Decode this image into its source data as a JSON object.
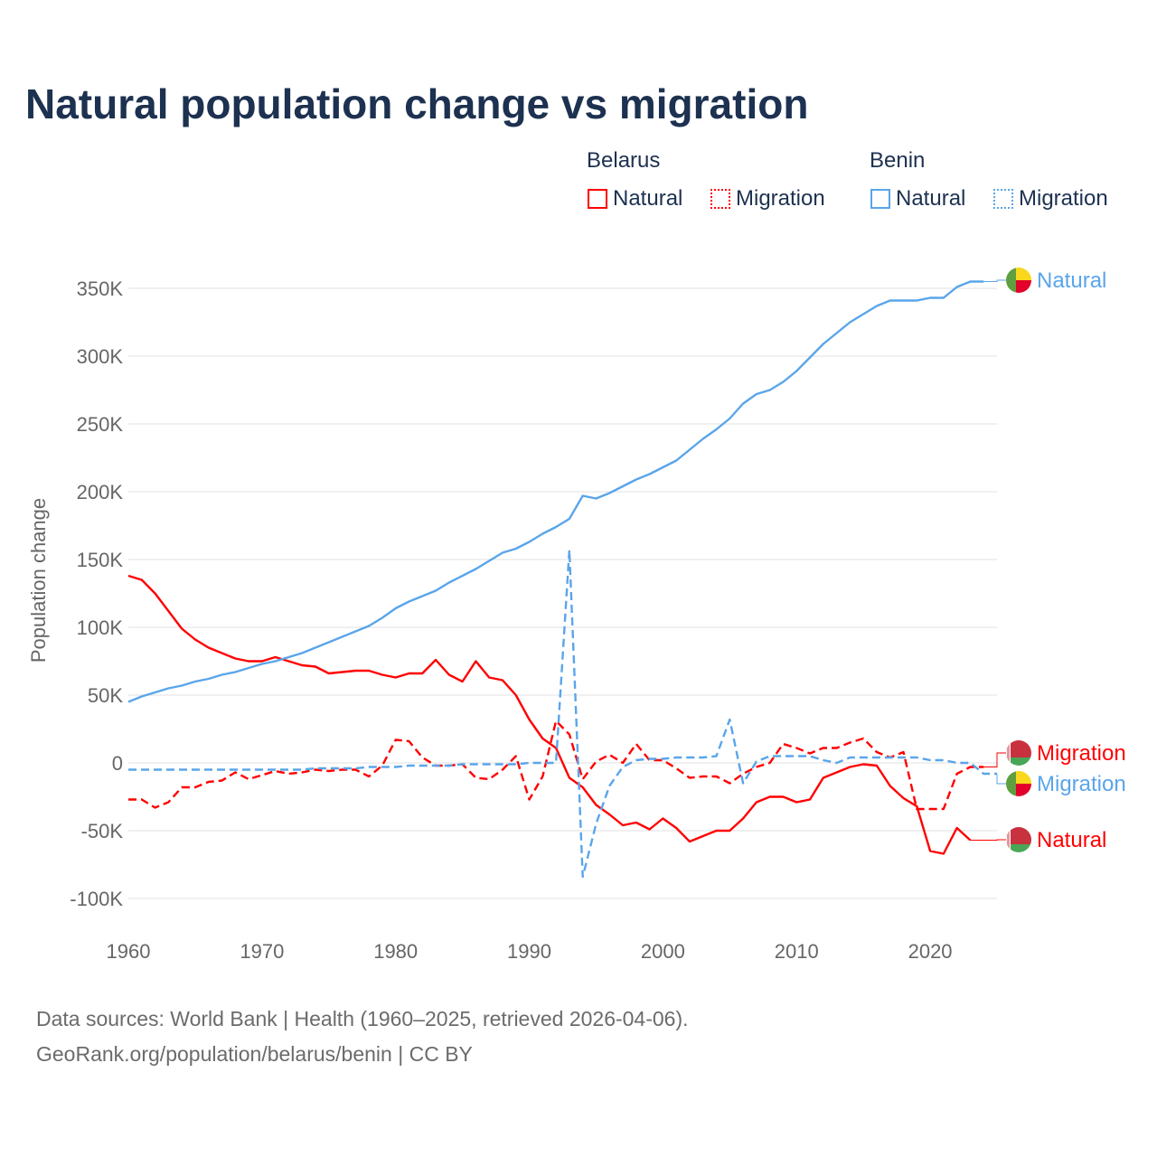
{
  "title": "Natural population change vs migration",
  "legend": {
    "groups": [
      {
        "name": "Belarus",
        "items": [
          {
            "label": "Natural",
            "style": "solid"
          },
          {
            "label": "Migration",
            "style": "dotted"
          }
        ],
        "color": "#ff0000"
      },
      {
        "name": "Benin",
        "items": [
          {
            "label": "Natural",
            "style": "solid"
          },
          {
            "label": "Migration",
            "style": "dotted"
          }
        ],
        "color": "#5aa5ea"
      }
    ]
  },
  "footer": {
    "line1": "Data sources: World Bank | Health (1960–2025, retrieved 2026-04-06).",
    "line2": "GeoRank.org/population/belarus/benin | CC BY"
  },
  "chart_data": {
    "type": "line",
    "title": "Natural population change vs migration",
    "xlabel": "",
    "ylabel": "Population change",
    "xlim": [
      1960,
      2025
    ],
    "ylim": [
      -100000,
      350000
    ],
    "x_ticks": [
      1960,
      1970,
      1980,
      1990,
      2000,
      2010,
      2020
    ],
    "y_ticks": [
      {
        "v": -100000,
        "label": "-100K"
      },
      {
        "v": -50000,
        "label": "-50K"
      },
      {
        "v": 0,
        "label": "0"
      },
      {
        "v": 50000,
        "label": "50K"
      },
      {
        "v": 100000,
        "label": "100K"
      },
      {
        "v": 150000,
        "label": "150K"
      },
      {
        "v": 200000,
        "label": "200K"
      },
      {
        "v": 250000,
        "label": "250K"
      },
      {
        "v": 300000,
        "label": "300K"
      },
      {
        "v": 350000,
        "label": "350K"
      }
    ],
    "grid": true,
    "start_year": 1960,
    "series": [
      {
        "name": "Belarus Natural",
        "country": "Belarus",
        "kind": "Natural",
        "color": "#ff0000",
        "dash": false,
        "end_label": "Natural",
        "unit": "K",
        "values": [
          138,
          135,
          125,
          112,
          99,
          91,
          85,
          81,
          77,
          75,
          75,
          78,
          75,
          72,
          71,
          66,
          67,
          68,
          68,
          65,
          63,
          66,
          66,
          76,
          65,
          60,
          75,
          63,
          61,
          50,
          32,
          18,
          11,
          -11,
          -18,
          -31,
          -38,
          -46,
          -44,
          -49,
          -41,
          -48,
          -58,
          -54,
          -50,
          -50,
          -41,
          -29,
          -25,
          -25,
          -29,
          -27,
          -11,
          -7,
          -3,
          -1,
          -2,
          -17,
          -26,
          -32,
          -65,
          -67,
          -48,
          -57
        ]
      },
      {
        "name": "Belarus Migration",
        "country": "Belarus",
        "kind": "Migration",
        "color": "#ff0000",
        "dash": true,
        "end_label": "Migration",
        "unit": "K",
        "values": [
          -27,
          -27,
          -33,
          -29,
          -18,
          -18,
          -14,
          -13,
          -7,
          -12,
          -9,
          -6,
          -8,
          -7,
          -5,
          -6,
          -5,
          -5,
          -10,
          -2,
          17,
          16,
          4,
          -2,
          -2,
          -1,
          -11,
          -12,
          -5,
          5,
          -27,
          -10,
          31,
          21,
          -12,
          1,
          6,
          0,
          14,
          2,
          2,
          -4,
          -11,
          -10,
          -10,
          -15,
          -8,
          -3,
          0,
          14,
          11,
          7,
          11,
          11,
          15,
          18,
          8,
          4,
          8,
          -34,
          -34,
          -34,
          -8,
          -3,
          -3
        ]
      },
      {
        "name": "Benin Natural",
        "country": "Benin",
        "kind": "Natural",
        "color": "#5aa5ea",
        "dash": false,
        "end_label": "Natural",
        "unit": "K",
        "values": [
          45,
          49,
          52,
          55,
          57,
          60,
          62,
          65,
          67,
          70,
          73,
          75,
          78,
          81,
          85,
          89,
          93,
          97,
          101,
          107,
          114,
          119,
          123,
          127,
          133,
          138,
          143,
          149,
          155,
          158,
          163,
          169,
          174,
          180,
          197,
          195,
          199,
          204,
          209,
          213,
          218,
          223,
          231,
          239,
          246,
          254,
          265,
          272,
          275,
          281,
          289,
          299,
          309,
          317,
          325,
          331,
          337,
          341,
          341,
          341,
          343,
          343,
          351,
          355,
          355
        ]
      },
      {
        "name": "Benin Migration",
        "country": "Benin",
        "kind": "Migration",
        "color": "#5aa5ea",
        "dash": true,
        "end_label": "Migration",
        "unit": "K",
        "values": [
          -5,
          -5,
          -5,
          -5,
          -5,
          -5,
          -5,
          -5,
          -5,
          -5,
          -5,
          -5,
          -5,
          -5,
          -4,
          -4,
          -4,
          -4,
          -3,
          -3,
          -3,
          -2,
          -2,
          -2,
          -2,
          -1,
          -1,
          -1,
          -1,
          -1,
          0,
          0,
          0,
          157,
          -84,
          -45,
          -17,
          -3,
          2,
          3,
          3,
          4,
          4,
          4,
          5,
          32,
          -15,
          1,
          5,
          5,
          5,
          5,
          2,
          0,
          4,
          4,
          4,
          4,
          4,
          4,
          2,
          2,
          0,
          0,
          -8,
          -8
        ]
      }
    ]
  }
}
